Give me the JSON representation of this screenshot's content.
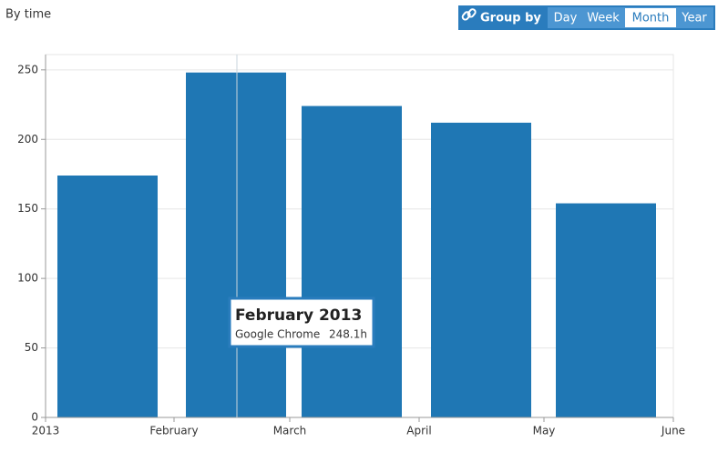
{
  "header": {
    "title": "By time"
  },
  "group_by": {
    "label": "Group by",
    "options": [
      "Day",
      "Week",
      "Month",
      "Year"
    ],
    "selected": 2
  },
  "chart_data": {
    "type": "bar",
    "xticks": [
      "2013",
      "February",
      "March",
      "April",
      "May",
      "June"
    ],
    "series": [
      {
        "name": "Google Chrome",
        "color": "#1f77b4",
        "values": [
          174,
          248.1,
          224,
          212,
          154
        ]
      }
    ],
    "ylim": [
      0,
      261
    ],
    "yticks": [
      0,
      50,
      100,
      150,
      200,
      250
    ],
    "grid": true
  },
  "tooltip": {
    "title": "February 2013",
    "series": "Google Chrome",
    "value": "248.1h"
  }
}
